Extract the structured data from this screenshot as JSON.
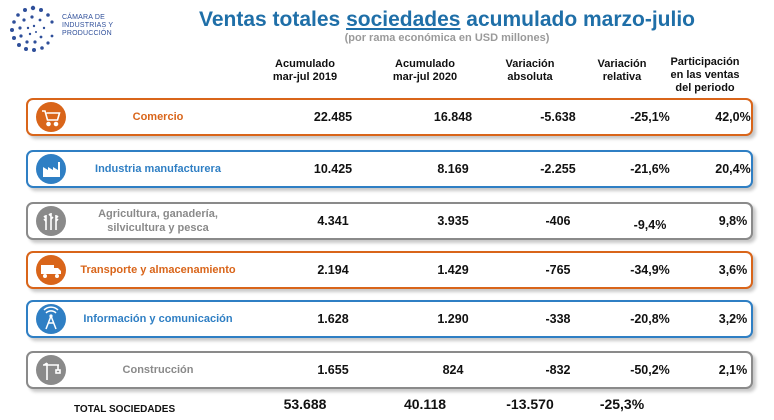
{
  "logo": {
    "line1": "CÁMARA DE",
    "line2": "INDUSTRIAS Y",
    "line3": "PRODUCCIÓN"
  },
  "title": {
    "pre": "Ventas totales ",
    "underlined": "sociedades",
    "post": " acumulado marzo-julio"
  },
  "subtitle": "(por rama económica en USD millones)",
  "headers": {
    "acum2019": [
      "Acumulado",
      "mar-jul 2019"
    ],
    "acum2020": [
      "Acumulado",
      "mar-jul 2020"
    ],
    "var_abs": [
      "Variación",
      "absoluta"
    ],
    "var_rel": [
      "Variación",
      "relativa"
    ],
    "participacion": [
      "Participación",
      "en las ventas",
      "del periodo"
    ]
  },
  "colors": {
    "orange": "#d9651a",
    "blue": "#2f7fc4",
    "gray": "#8a8a8a",
    "title": "#1f6fa8"
  },
  "rows": [
    {
      "label": "Comercio",
      "icon": "cart-icon",
      "color": "#d9651a",
      "acum2019": "22.485",
      "acum2020": "16.848",
      "var_abs": "-5.638",
      "var_rel": "-25,1%",
      "part": "42,0%"
    },
    {
      "label": "Industria manufacturera",
      "icon": "factory-icon",
      "color": "#2f7fc4",
      "acum2019": "10.425",
      "acum2020": "8.169",
      "var_abs": "-2.255",
      "var_rel": "-21,6%",
      "part": "20,4%"
    },
    {
      "label": "Agricultura, ganadería, silvicultura y pesca",
      "icon": "wheat-icon",
      "color": "#8a8a8a",
      "acum2019": "4.341",
      "acum2020": "3.935",
      "var_abs": "-406",
      "var_rel": "-9,4%",
      "part": "9,8%"
    },
    {
      "label": "Transporte y almacenamiento",
      "icon": "truck-icon",
      "color": "#d9651a",
      "acum2019": "2.194",
      "acum2020": "1.429",
      "var_abs": "-765",
      "var_rel": "-34,9%",
      "part": "3,6%"
    },
    {
      "label": "Información y comunicación",
      "icon": "antenna-icon",
      "color": "#2f7fc4",
      "acum2019": "1.628",
      "acum2020": "1.290",
      "var_abs": "-338",
      "var_rel": "-20,8%",
      "part": "3,2%"
    },
    {
      "label": "Construcción",
      "icon": "crane-icon",
      "color": "#8a8a8a",
      "acum2019": "1.655",
      "acum2020": "824",
      "var_abs": "-832",
      "var_rel": "-50,2%",
      "part": "2,1%"
    }
  ],
  "total": {
    "label": "TOTAL SOCIEDADES",
    "acum2019": "53.688",
    "acum2020": "40.118",
    "var_abs": "-13.570",
    "var_rel": "-25,3%"
  }
}
